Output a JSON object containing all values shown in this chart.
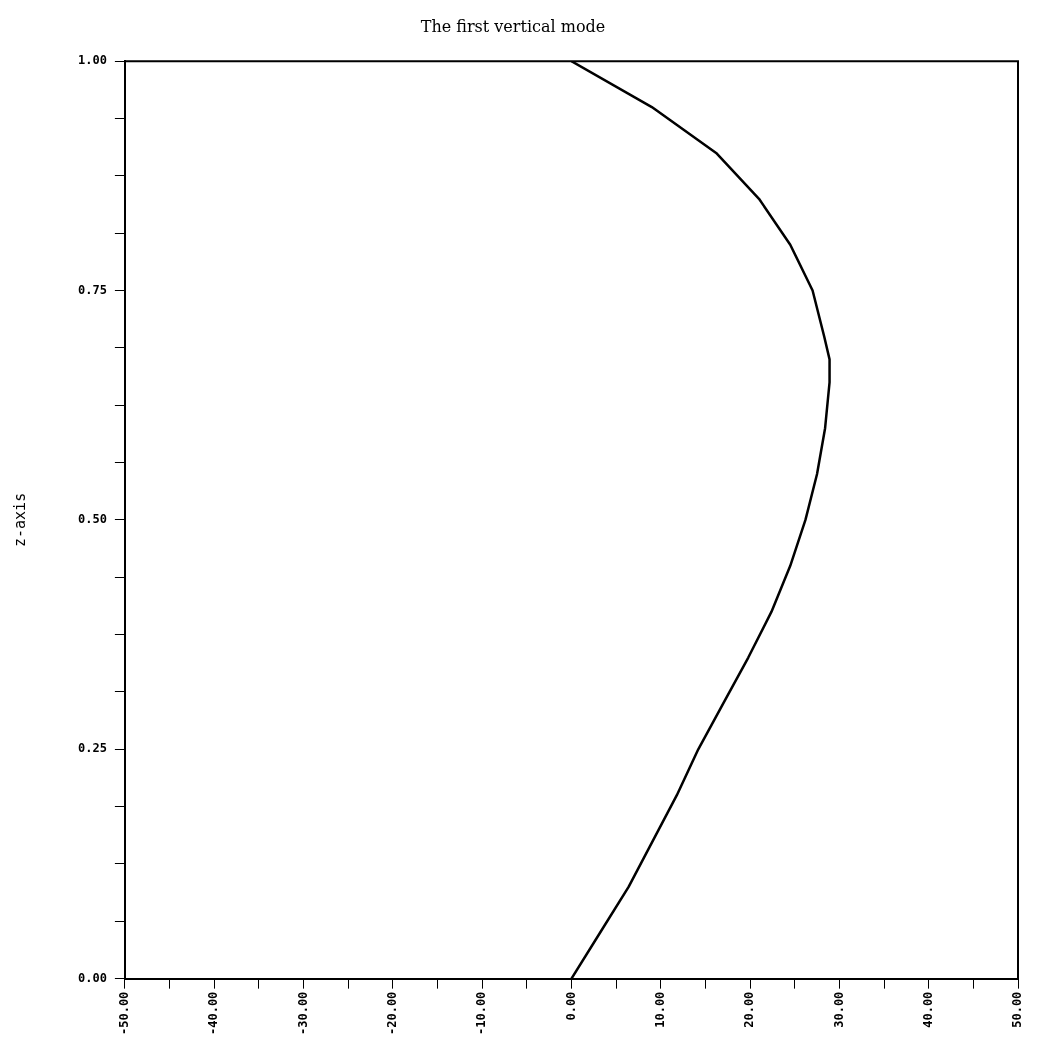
{
  "chart_data": {
    "type": "line",
    "title": "The first vertical mode",
    "ylabel": "z-axis",
    "x": [
      0,
      3.2,
      6.4,
      11.8,
      14.2,
      17.0,
      19.8,
      22.4,
      24.5,
      26.2,
      27.5,
      28.4,
      28.9,
      28.9,
      28.3,
      27.0,
      24.5,
      21.0,
      16.2,
      9.0,
      0
    ],
    "values": [
      0,
      0.05,
      0.1,
      0.2,
      0.25,
      0.3,
      0.35,
      0.4,
      0.45,
      0.5,
      0.55,
      0.6,
      0.65,
      0.675,
      0.7,
      0.75,
      0.8,
      0.85,
      0.9,
      0.95,
      1.0
    ],
    "color": "#000000",
    "marker": "none",
    "line_style": "solid",
    "legend": false,
    "grid": false,
    "xlim": [
      -50,
      50
    ],
    "xticks": [
      {
        "value": -50,
        "label": "-50.00"
      },
      {
        "value": -45,
        "label": null
      },
      {
        "value": -40,
        "label": "-40.00"
      },
      {
        "value": -35,
        "label": null
      },
      {
        "value": -30,
        "label": "-30.00"
      },
      {
        "value": -25,
        "label": null
      },
      {
        "value": -20,
        "label": "-20.00"
      },
      {
        "value": -15,
        "label": null
      },
      {
        "value": -10,
        "label": "-10.00"
      },
      {
        "value": -5,
        "label": null
      },
      {
        "value": 0,
        "label": "0.00"
      },
      {
        "value": 5,
        "label": null
      },
      {
        "value": 10,
        "label": "10.00"
      },
      {
        "value": 15,
        "label": null
      },
      {
        "value": 20,
        "label": "20.00"
      },
      {
        "value": 25,
        "label": null
      },
      {
        "value": 30,
        "label": "30.00"
      },
      {
        "value": 35,
        "label": null
      },
      {
        "value": 40,
        "label": "40.00"
      },
      {
        "value": 45,
        "label": null
      },
      {
        "value": 50,
        "label": "50.00"
      }
    ],
    "ylim": [
      0,
      1
    ],
    "yticks": [
      {
        "value": 0,
        "label": "0.00"
      },
      {
        "value": 0.0625,
        "label": null
      },
      {
        "value": 0.125,
        "label": null
      },
      {
        "value": 0.1875,
        "label": null
      },
      {
        "value": 0.25,
        "label": "0.25"
      },
      {
        "value": 0.3125,
        "label": null
      },
      {
        "value": 0.375,
        "label": null
      },
      {
        "value": 0.4375,
        "label": null
      },
      {
        "value": 0.5,
        "label": "0.50"
      },
      {
        "value": 0.5625,
        "label": null
      },
      {
        "value": 0.625,
        "label": null
      },
      {
        "value": 0.6875,
        "label": null
      },
      {
        "value": 0.75,
        "label": "0.75"
      },
      {
        "value": 0.8125,
        "label": null
      },
      {
        "value": 0.875,
        "label": null
      },
      {
        "value": 0.9375,
        "label": null
      },
      {
        "value": 1,
        "label": "1.00"
      }
    ]
  }
}
